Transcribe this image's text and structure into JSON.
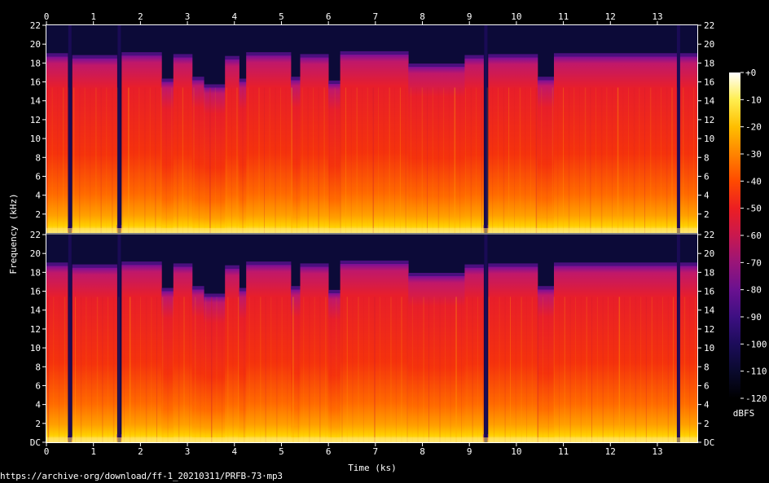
{
  "chart_data": {
    "type": "heatmap",
    "subtype": "spectrogram",
    "channels": 2,
    "xlabel": "Time (ks)",
    "ylabel": "Frequency (kHz)",
    "x_ticks": [
      "0",
      "1",
      "2",
      "3",
      "4",
      "5",
      "6",
      "7",
      "8",
      "9",
      "10",
      "11",
      "12",
      "13"
    ],
    "xlim": [
      0,
      13.85
    ],
    "y_ticks_top": [
      "2",
      "4",
      "6",
      "8",
      "10",
      "12",
      "14",
      "16",
      "18",
      "20",
      "22"
    ],
    "y_ticks_bottom": [
      "DC",
      "2",
      "4",
      "6",
      "8",
      "10",
      "12",
      "14",
      "16",
      "18",
      "20",
      "22"
    ],
    "ylim": [
      0,
      22
    ],
    "colorbar": {
      "label": "dBFS",
      "ticks": [
        "+0",
        "-10",
        "-20",
        "-30",
        "-40",
        "-50",
        "-60",
        "-70",
        "-80",
        "-90",
        "-100",
        "-110",
        "-120"
      ],
      "range": [
        -120,
        0
      ],
      "colors": [
        "#000000",
        "#0a0a2e",
        "#1c0c5a",
        "#3d0f82",
        "#6a1190",
        "#9a1578",
        "#c9184e",
        "#ec1e22",
        "#ff4a00",
        "#ff8400",
        "#ffbe00",
        "#ffee50",
        "#ffffff"
      ]
    },
    "cutoff_segments_khz": [
      {
        "t0": 0.0,
        "t1": 0.45,
        "cutoff": 18.7
      },
      {
        "t0": 0.45,
        "t1": 0.55,
        "cutoff": 0.3
      },
      {
        "t0": 0.55,
        "t1": 1.5,
        "cutoff": 18.5
      },
      {
        "t0": 1.5,
        "t1": 1.6,
        "cutoff": 0.5
      },
      {
        "t0": 1.6,
        "t1": 2.45,
        "cutoff": 18.8
      },
      {
        "t0": 2.45,
        "t1": 2.7,
        "cutoff": 16.0
      },
      {
        "t0": 2.7,
        "t1": 3.1,
        "cutoff": 18.6
      },
      {
        "t0": 3.1,
        "t1": 3.35,
        "cutoff": 16.2
      },
      {
        "t0": 3.35,
        "t1": 3.8,
        "cutoff": 15.4
      },
      {
        "t0": 3.8,
        "t1": 4.1,
        "cutoff": 18.4
      },
      {
        "t0": 4.1,
        "t1": 4.25,
        "cutoff": 16.0
      },
      {
        "t0": 4.25,
        "t1": 5.2,
        "cutoff": 18.8
      },
      {
        "t0": 5.2,
        "t1": 5.4,
        "cutoff": 16.2
      },
      {
        "t0": 5.4,
        "t1": 6.0,
        "cutoff": 18.6
      },
      {
        "t0": 6.0,
        "t1": 6.25,
        "cutoff": 15.8
      },
      {
        "t0": 6.25,
        "t1": 7.7,
        "cutoff": 18.9
      },
      {
        "t0": 7.7,
        "t1": 8.9,
        "cutoff": 17.6
      },
      {
        "t0": 8.9,
        "t1": 9.3,
        "cutoff": 18.5
      },
      {
        "t0": 9.3,
        "t1": 9.4,
        "cutoff": 0.5
      },
      {
        "t0": 9.4,
        "t1": 10.45,
        "cutoff": 18.6
      },
      {
        "t0": 10.45,
        "t1": 10.8,
        "cutoff": 16.2
      },
      {
        "t0": 10.8,
        "t1": 13.85,
        "cutoff": 18.7
      }
    ],
    "gaps_ks": [
      0.5,
      1.55,
      9.35,
      13.45
    ]
  },
  "source_url": "https://archive·org/download/ff-1_20210311/PRFB-73·mp3"
}
